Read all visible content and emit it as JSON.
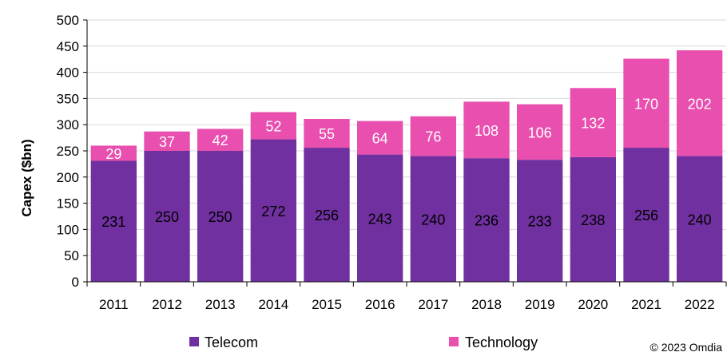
{
  "chart_data": {
    "type": "bar",
    "stacked": true,
    "categories": [
      "2011",
      "2012",
      "2013",
      "2014",
      "2015",
      "2016",
      "2017",
      "2018",
      "2019",
      "2020",
      "2021",
      "2022"
    ],
    "series": [
      {
        "name": "Telecom",
        "color": "#7030A0",
        "values": [
          231,
          250,
          250,
          272,
          256,
          243,
          240,
          236,
          233,
          238,
          256,
          240
        ]
      },
      {
        "name": "Technology",
        "color": "#E84FAE",
        "values": [
          29,
          37,
          42,
          52,
          55,
          64,
          76,
          108,
          106,
          132,
          170,
          202
        ]
      }
    ],
    "title": "",
    "xlabel": "",
    "ylabel": "Capex ($bn)",
    "ylim": [
      0,
      500
    ],
    "yticks": [
      0,
      50,
      100,
      150,
      200,
      250,
      300,
      350,
      400,
      450,
      500
    ],
    "grid": true,
    "legend": "bottom"
  },
  "copyright": "© 2023 Omdia"
}
